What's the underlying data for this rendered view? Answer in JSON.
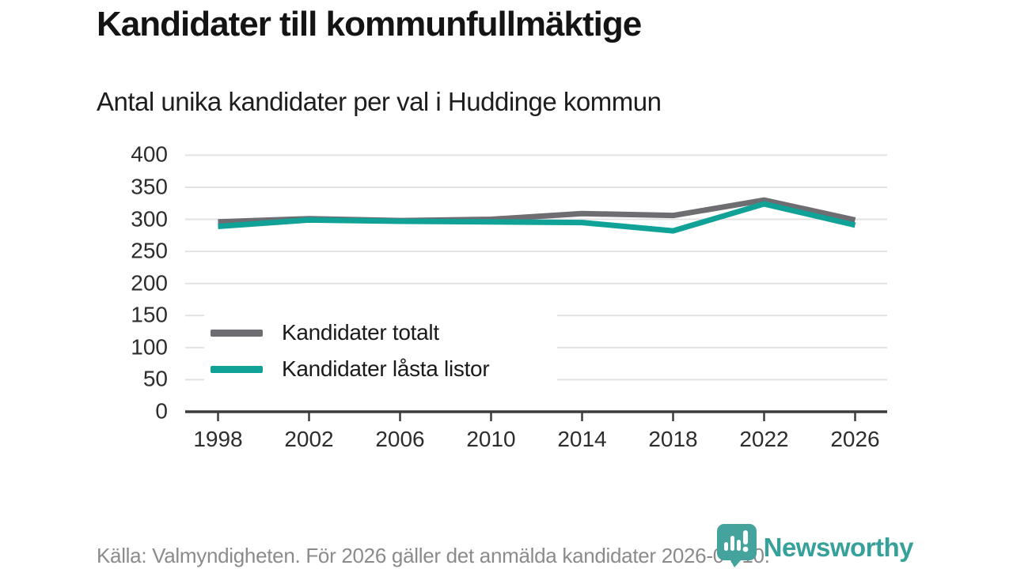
{
  "header": {
    "title": "Kandidater till kommunfullmäktige",
    "subtitle": "Antal unika kandidater per val i Huddinge kommun"
  },
  "chart_data": {
    "type": "line",
    "x": [
      1998,
      2002,
      2006,
      2010,
      2014,
      2018,
      2022,
      2026
    ],
    "series": [
      {
        "name": "Kandidater totalt",
        "color": "#6d6d72",
        "values": [
          296,
          301,
          298,
          300,
          309,
          306,
          330,
          299
        ]
      },
      {
        "name": "Kandidater låsta listor",
        "color": "#10a296",
        "values": [
          289,
          299,
          297,
          296,
          295,
          282,
          324,
          291
        ]
      }
    ],
    "title": "Kandidater till kommunfullmäktige",
    "subtitle": "Antal unika kandidater per val i Huddinge kommun",
    "xlabel": "",
    "ylabel": "",
    "ylim": [
      0,
      400
    ],
    "yticks": [
      0,
      50,
      100,
      150,
      200,
      250,
      300,
      350,
      400
    ],
    "grid": true,
    "legend_position": "inside-left-middle"
  },
  "colors": {
    "grid": "#e2e2e2",
    "axis": "#3c3c3c",
    "tick_text": "#2d2d2d",
    "series_total": "#6d6d72",
    "series_locked": "#10a296",
    "logo_teal": "#35a19a",
    "footer_text": "#8b8b8b"
  },
  "footer": {
    "source": "Källa: Valmyndigheten. För 2026 gäller det anmälda kandidater 2026-04-10."
  },
  "logo": {
    "text": "Newsworthy",
    "icon": "newsworthy-bubble-barchart-icon"
  }
}
